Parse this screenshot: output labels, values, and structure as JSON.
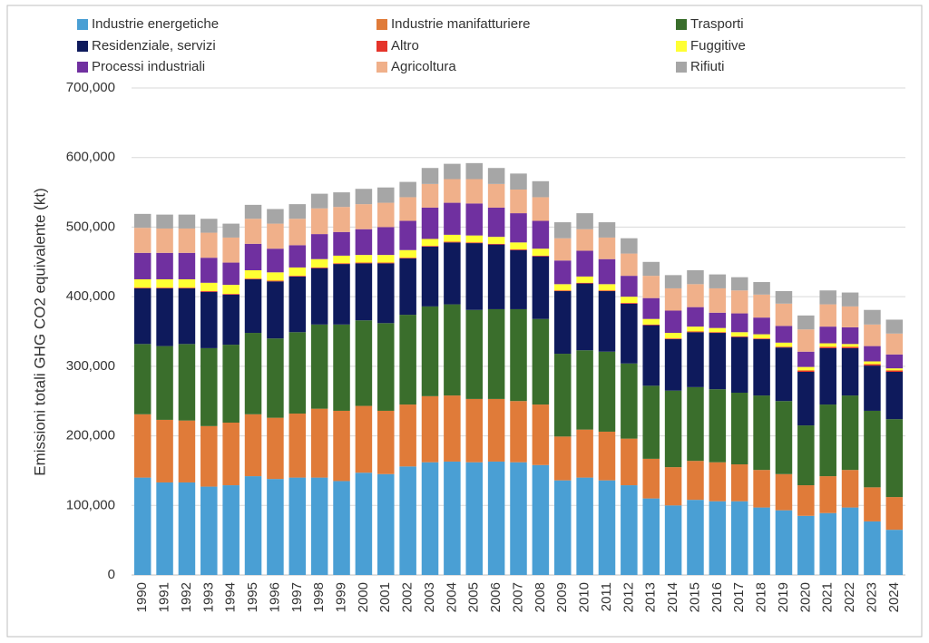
{
  "chart_data": {
    "type": "stacked_bar",
    "y_label": "Emissioni totali GHG CO2 equivalente (kt)",
    "categories": [
      "1990",
      "1991",
      "1992",
      "1993",
      "1994",
      "1995",
      "1996",
      "1997",
      "1998",
      "1999",
      "2000",
      "2001",
      "2002",
      "2003",
      "2004",
      "2005",
      "2006",
      "2007",
      "2008",
      "2009",
      "2010",
      "2011",
      "2012",
      "2013",
      "2014",
      "2015",
      "2016",
      "2017",
      "2018",
      "2019",
      "2020",
      "2021",
      "2022",
      "2023",
      "2024"
    ],
    "series": [
      {
        "name": "Industrie energetiche",
        "color": "#4a9fd4",
        "values": [
          140000,
          133000,
          133000,
          127000,
          129000,
          142000,
          138000,
          140000,
          140000,
          135000,
          147000,
          145000,
          156000,
          162000,
          163000,
          162000,
          163000,
          162000,
          158000,
          136000,
          140000,
          136000,
          129000,
          110000,
          100000,
          108000,
          106000,
          106000,
          97000,
          93000,
          85000,
          89000,
          97000,
          77000,
          65000
        ]
      },
      {
        "name": "Industrie manifatturiere",
        "color": "#e07b39",
        "values": [
          91000,
          90000,
          89000,
          87000,
          90000,
          89000,
          88000,
          92000,
          99000,
          101000,
          96000,
          91000,
          89000,
          95000,
          95000,
          91000,
          90000,
          88000,
          87000,
          63000,
          69000,
          70000,
          67000,
          57000,
          55000,
          56000,
          56000,
          53000,
          54000,
          52000,
          44000,
          53000,
          54000,
          49000,
          47000
        ]
      },
      {
        "name": "Trasporti",
        "color": "#3a6e2c",
        "values": [
          101000,
          106000,
          110000,
          112000,
          112000,
          117000,
          114000,
          117000,
          121000,
          124000,
          123000,
          126000,
          129000,
          129000,
          131000,
          128000,
          129000,
          132000,
          123000,
          119000,
          114000,
          115000,
          108000,
          105000,
          110000,
          106000,
          105000,
          103000,
          107000,
          105000,
          86000,
          103000,
          107000,
          110000,
          112000
        ]
      },
      {
        "name": "Residenziale, servizi",
        "color": "#0e1a5c",
        "values": [
          80000,
          83000,
          80000,
          81000,
          72000,
          77000,
          82000,
          80000,
          81000,
          87000,
          82000,
          86000,
          81000,
          86000,
          89000,
          96000,
          93000,
          85000,
          90000,
          90000,
          96000,
          87000,
          86000,
          87000,
          74000,
          79000,
          81000,
          80000,
          81000,
          77000,
          77000,
          81000,
          68000,
          65000,
          68000
        ]
      },
      {
        "name": "Altro",
        "color": "#e5342a",
        "values": [
          1000,
          1000,
          1000,
          1000,
          1000,
          1000,
          1000,
          1000,
          1000,
          1000,
          1000,
          1000,
          1000,
          1000,
          1000,
          1000,
          1000,
          1000,
          1000,
          1000,
          1000,
          1000,
          1000,
          1000,
          1000,
          1000,
          1000,
          1000,
          1000,
          1000,
          2000,
          2000,
          2000,
          2000,
          2000
        ]
      },
      {
        "name": "Fuggitive",
        "color": "#ffff33",
        "values": [
          12000,
          12000,
          12000,
          12000,
          13000,
          12000,
          12000,
          12000,
          12000,
          11000,
          11000,
          11000,
          11000,
          10000,
          10000,
          10000,
          10000,
          10000,
          10000,
          9000,
          9000,
          9000,
          9000,
          8000,
          8000,
          7000,
          6000,
          6000,
          6000,
          6000,
          5000,
          5000,
          4000,
          4000,
          3000
        ]
      },
      {
        "name": "Processi industriali",
        "color": "#7030a0",
        "values": [
          38000,
          38000,
          38000,
          36000,
          32000,
          38000,
          34000,
          32000,
          36000,
          34000,
          37000,
          40000,
          42000,
          45000,
          46000,
          46000,
          42000,
          42000,
          40000,
          34000,
          37000,
          36000,
          30000,
          30000,
          32000,
          28000,
          22000,
          27000,
          24000,
          24000,
          22000,
          24000,
          24000,
          22000,
          20000
        ]
      },
      {
        "name": "Agricoltura",
        "color": "#f0b08a",
        "values": [
          36000,
          35000,
          35000,
          36000,
          36000,
          36000,
          36000,
          38000,
          37000,
          36000,
          36000,
          35000,
          34000,
          34000,
          34000,
          35000,
          34000,
          34000,
          34000,
          32000,
          31000,
          31000,
          32000,
          32000,
          32000,
          33000,
          35000,
          33000,
          33000,
          32000,
          32000,
          32000,
          30000,
          31000,
          30000
        ]
      },
      {
        "name": "Rifiuti",
        "color": "#a6a6a6",
        "values": [
          20000,
          20000,
          20000,
          20000,
          20000,
          20000,
          21000,
          21000,
          21000,
          21000,
          22000,
          22000,
          22000,
          23000,
          22000,
          23000,
          23000,
          23000,
          23000,
          23000,
          23000,
          22000,
          22000,
          20000,
          19000,
          20000,
          20000,
          19000,
          18000,
          18000,
          20000,
          20000,
          20000,
          21000,
          20000
        ]
      }
    ],
    "ylim": [
      0,
      700000
    ],
    "yticks": [
      0,
      {
        "value": 100000,
        "label": "100,000"
      },
      {
        "value": 200000,
        "label": "200,000"
      },
      {
        "value": 300000,
        "label": "300,000"
      },
      {
        "value": 400000,
        "label": "400,000"
      },
      {
        "value": 500000,
        "label": "500,000"
      },
      {
        "value": 600000,
        "label": "600,000"
      },
      {
        "value": 700000,
        "label": "700,000"
      }
    ],
    "grid": true,
    "legend": "top"
  }
}
